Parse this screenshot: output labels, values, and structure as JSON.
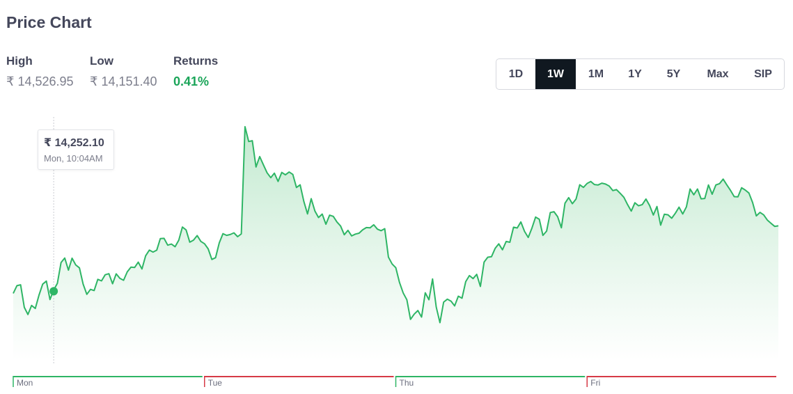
{
  "page": {
    "title": "Price Chart"
  },
  "stats": [
    {
      "label": "High",
      "value": "₹ 14,526.95"
    },
    {
      "label": "Low",
      "value": "₹ 14,151.40"
    },
    {
      "label": "Returns",
      "value": "0.41%"
    }
  ],
  "range_selector": {
    "options": [
      "1D",
      "1W",
      "1M",
      "1Y",
      "5Y",
      "Max",
      "SIP"
    ],
    "selected": "1W"
  },
  "tooltip": {
    "price": "₹ 14,252.10",
    "time": "Mon, 10:04AM"
  },
  "colors": {
    "line": "#2eb565",
    "area_top": "#c3ead0",
    "up_day": "#2eb565",
    "down_day": "#d63a46",
    "active_button": "#101820",
    "returns_positive": "#1ba559"
  },
  "chart_data": {
    "type": "area",
    "title": "",
    "xlabel": "",
    "ylabel": "",
    "ylim": [
      14151.4,
      14526.95
    ],
    "grid": false,
    "days": [
      {
        "label": "Mon",
        "trend": "up"
      },
      {
        "label": "Tue",
        "trend": "down"
      },
      {
        "label": "Thu",
        "trend": "up"
      },
      {
        "label": "Fri",
        "trend": "down"
      }
    ],
    "highlight": {
      "day": "Mon",
      "time": "10:04AM",
      "value": 14252.1
    },
    "values": [
      14248.5,
      14261.4,
      14262.9,
      14225.2,
      14213.3,
      14228.4,
      14223.4,
      14245.6,
      14263.9,
      14269.1,
      14238.2,
      14254.2,
      14265.3,
      14300.1,
      14307.6,
      14287.3,
      14307.3,
      14296.0,
      14291.2,
      14264.1,
      14247.0,
      14255.2,
      14253.3,
      14272.0,
      14269.4,
      14279.7,
      14281.4,
      14264.7,
      14281.2,
      14273.6,
      14270.5,
      14284.5,
      14292.4,
      14291.9,
      14300.7,
      14289.3,
      14311.4,
      14320.8,
      14317.6,
      14320.7,
      14340.1,
      14340.4,
      14329.1,
      14330.9,
      14326.5,
      14337.4,
      14359.4,
      14354.5,
      14334.1,
      14337.4,
      14345.1,
      14335.3,
      14331.4,
      14322.9,
      14305.2,
      14308.1,
      14332.8,
      14348.3,
      14345.5,
      14346.8,
      14349.6,
      14343.3,
      14347.9,
      14526.9,
      14502.2,
      14503.6,
      14459.6,
      14477.1,
      14463.4,
      14450.0,
      14441.8,
      14449.3,
      14435.6,
      14450.6,
      14446.6,
      14451.3,
      14447.2,
      14425.5,
      14429.9,
      14402.2,
      14381.3,
      14406.7,
      14386.2,
      14375.2,
      14381.0,
      14364.1,
      14379.2,
      14377.2,
      14367.8,
      14361.0,
      14346.5,
      14353.8,
      14344.5,
      14347.6,
      14349.1,
      14354.8,
      14358.5,
      14358.0,
      14363.1,
      14355.8,
      14353.3,
      14356.6,
      14309.2,
      14297.7,
      14291.4,
      14266.8,
      14249.3,
      14237.8,
      14205.1,
      14213.8,
      14219.9,
      14209.0,
      14249.5,
      14237.9,
      14272.7,
      14225.6,
      14199.7,
      14234.0,
      14238.8,
      14235.6,
      14227.7,
      14243.8,
      14240.5,
      14268.1,
      14278.3,
      14273.2,
      14280.3,
      14260.1,
      14300.8,
      14309.0,
      14309.8,
      14323.7,
      14331.3,
      14321.4,
      14335.2,
      14334.0,
      14359.1,
      14357.8,
      14367.9,
      14352.1,
      14342.0,
      14357.6,
      14376.0,
      14372.3,
      14345.4,
      14352.5,
      14383.6,
      14385.0,
      14376.5,
      14358.1,
      14399.2,
      14408.5,
      14398.3,
      14406.2,
      14430.0,
      14425.6,
      14432.2,
      14435.4,
      14430.3,
      14429.6,
      14432.7,
      14431.1,
      14427.8,
      14420.2,
      14421.8,
      14415.7,
      14409.1,
      14396.8,
      14386.0,
      14399.9,
      14394.9,
      14396.9,
      14406.2,
      14395.1,
      14379.4,
      14393.6,
      14362.5,
      14380.7,
      14379.8,
      14374.0,
      14382.5,
      14392.6,
      14381.1,
      14393.0,
      14422.9,
      14413.2,
      14422.9,
      14406.5,
      14407.1,
      14429.6,
      14414.2,
      14429.6,
      14431.8,
      14439.4,
      14429.6,
      14420.4,
      14410.1,
      14409.9,
      14425.0,
      14421.2,
      14416.1,
      14400.2,
      14378.0,
      14383.8,
      14379.6,
      14371.0,
      14365.6,
      14360.4,
      14361.4
    ]
  }
}
